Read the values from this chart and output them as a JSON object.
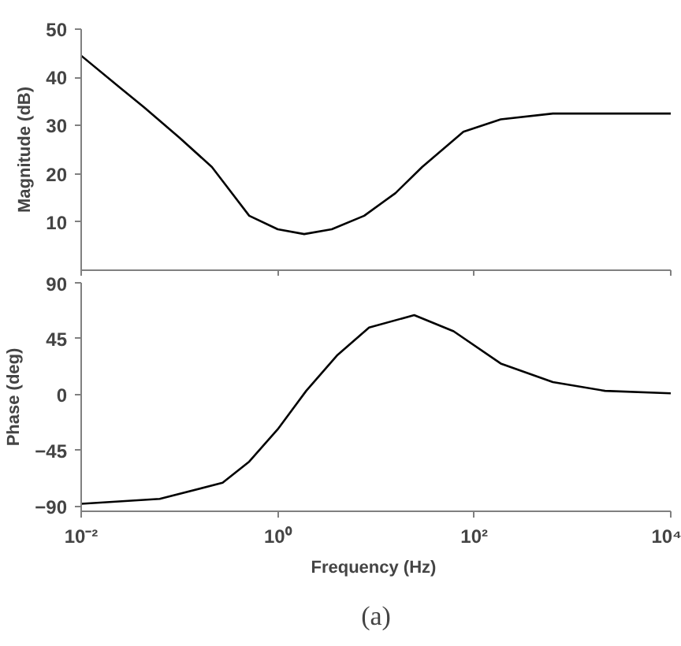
{
  "chart_data": [
    {
      "type": "line",
      "ylabel": "Magnitude (dB)",
      "log": "x",
      "grid": false,
      "marker": "none",
      "line_style": "solid",
      "tick_labels": "y",
      "xlim": [
        0.01,
        10000
      ],
      "xticks": [
        {
          "value": 0.01,
          "label": null
        },
        {
          "value": 1,
          "label": null
        },
        {
          "value": 100,
          "label": null
        },
        {
          "value": 10000,
          "label": null
        }
      ],
      "ylim": [
        0,
        50
      ],
      "yticks": [
        10,
        20,
        30,
        40,
        50
      ],
      "series": [
        {
          "color": "#000000",
          "x": [
            0.01,
            0.0251,
            0.0437,
            0.1,
            0.214,
            0.513,
            1,
            1.86,
            3.55,
            7.59,
            15.8,
            29.5,
            77.6,
            186,
            631,
            2000,
            10000
          ],
          "values": [
            44.5,
            37.8,
            33.8,
            27.5,
            21.4,
            11.3,
            8.5,
            7.5,
            8.5,
            11.3,
            16,
            21.4,
            28.7,
            31.3,
            32.5,
            32.5,
            32.5
          ]
        }
      ]
    },
    {
      "type": "line",
      "xlabel": "Frequency  (Hz)",
      "ylabel": "Phase (deg)",
      "log": "x",
      "grid": false,
      "marker": "none",
      "line_style": "solid",
      "xlim": [
        0.01,
        10000
      ],
      "xticks": [
        {
          "value": 0.01,
          "label": "10⁻²"
        },
        {
          "value": 1,
          "label": "10⁰"
        },
        {
          "value": 100,
          "label": "10²"
        },
        {
          "value": 10000,
          "label": "10⁴"
        }
      ],
      "ylim": [
        -94,
        90
      ],
      "yticks": [
        -90,
        -45,
        0,
        45,
        90
      ],
      "annotations": [
        "(a)"
      ],
      "series": [
        {
          "color": "#000000",
          "x": [
            0.01,
            0.063,
            0.275,
            0.513,
            1,
            1.95,
            4.07,
            8.51,
            24.5,
            61.7,
            186,
            631,
            2140,
            10000
          ],
          "values": [
            -88,
            -84,
            -71,
            -54,
            -28,
            3,
            32,
            54,
            64,
            51,
            25,
            10,
            3,
            1
          ]
        }
      ]
    }
  ]
}
